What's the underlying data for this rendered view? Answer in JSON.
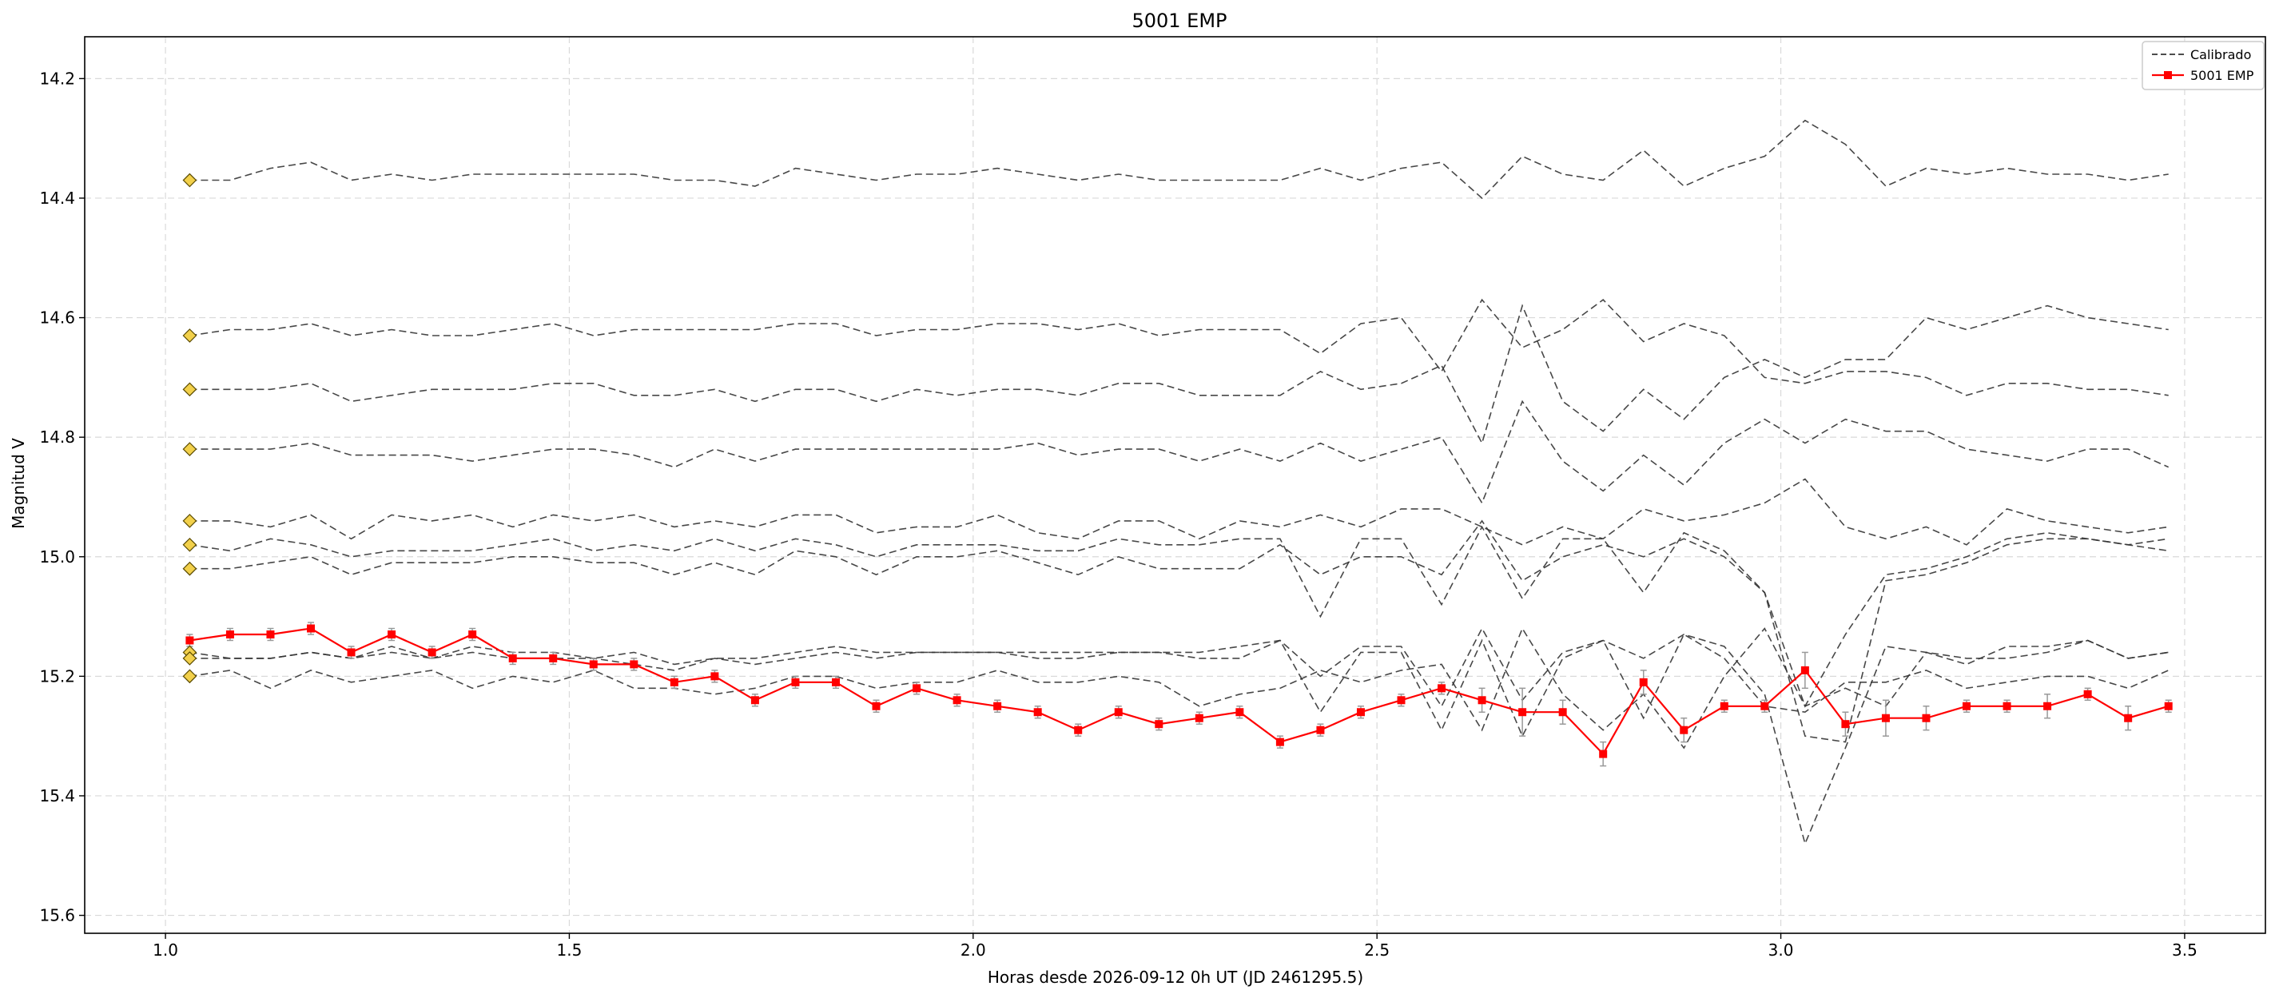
{
  "chart_data": {
    "type": "line",
    "title": "5001 EMP",
    "xlabel": "Horas desde 2026-09-12 0h UT (JD 2461295.5)",
    "ylabel": "Magnitud V",
    "xlim": [
      0.9,
      3.6
    ],
    "ylim": [
      15.63,
      14.13
    ],
    "y_inverted": true,
    "grid": true,
    "legend_position": "top-right",
    "x_ticks": [
      1.0,
      1.5,
      2.0,
      2.5,
      3.0,
      3.5
    ],
    "x_tick_labels": [
      "1.0",
      "1.5",
      "2.0",
      "2.5",
      "3.0",
      "3.5"
    ],
    "y_ticks": [
      14.2,
      14.4,
      14.6,
      14.8,
      15.0,
      15.2,
      15.4,
      15.6
    ],
    "y_tick_labels": [
      "14.2",
      "14.4",
      "14.6",
      "14.8",
      "15.0",
      "15.2",
      "15.4",
      "15.6"
    ],
    "legend": [
      {
        "label": "Calibrado",
        "style": "dashed",
        "color": "#333333"
      },
      {
        "label": "5001 EMP",
        "style": "solid-marker",
        "color": "#ff0000"
      }
    ],
    "x": [
      1.03,
      1.08,
      1.13,
      1.18,
      1.23,
      1.28,
      1.33,
      1.38,
      1.43,
      1.48,
      1.53,
      1.58,
      1.63,
      1.68,
      1.73,
      1.78,
      1.83,
      1.88,
      1.93,
      1.98,
      2.03,
      2.08,
      2.13,
      2.18,
      2.23,
      2.28,
      2.33,
      2.38,
      2.43,
      2.48,
      2.53,
      2.58,
      2.63,
      2.68,
      2.73,
      2.78,
      2.83,
      2.88,
      2.93,
      2.98,
      3.03,
      3.08,
      3.13,
      3.18,
      3.23,
      3.28,
      3.33,
      3.38,
      3.43,
      3.48
    ],
    "comparison_stars": [
      {
        "name": "Calibrado",
        "start_magnitude": 14.37,
        "values": [
          14.37,
          14.37,
          14.35,
          14.34,
          14.37,
          14.36,
          14.37,
          14.36,
          14.36,
          14.36,
          14.36,
          14.36,
          14.37,
          14.37,
          14.38,
          14.35,
          14.36,
          14.37,
          14.36,
          14.36,
          14.35,
          14.36,
          14.37,
          14.36,
          14.37,
          14.37,
          14.37,
          14.37,
          14.35,
          14.37,
          14.35,
          14.34,
          14.4,
          14.33,
          14.36,
          14.37,
          14.32,
          14.38,
          14.35,
          14.33,
          14.27,
          14.31,
          14.38,
          14.35,
          14.36,
          14.35,
          14.36,
          14.36,
          14.37,
          14.36
        ]
      },
      {
        "name": "Calibrado",
        "start_magnitude": 14.63,
        "values": [
          14.63,
          14.62,
          14.62,
          14.61,
          14.63,
          14.62,
          14.63,
          14.63,
          14.62,
          14.61,
          14.63,
          14.62,
          14.62,
          14.62,
          14.62,
          14.61,
          14.61,
          14.63,
          14.62,
          14.62,
          14.61,
          14.61,
          14.62,
          14.61,
          14.63,
          14.62,
          14.62,
          14.62,
          14.66,
          14.61,
          14.6,
          14.69,
          14.57,
          14.65,
          14.62,
          14.57,
          14.64,
          14.61,
          14.63,
          14.7,
          14.71,
          14.69,
          14.69,
          14.7,
          14.73,
          14.71,
          14.71,
          14.72,
          14.72,
          14.73
        ]
      },
      {
        "name": "Calibrado",
        "start_magnitude": 14.72,
        "values": [
          14.72,
          14.72,
          14.72,
          14.71,
          14.74,
          14.73,
          14.72,
          14.72,
          14.72,
          14.71,
          14.71,
          14.73,
          14.73,
          14.72,
          14.74,
          14.72,
          14.72,
          14.74,
          14.72,
          14.73,
          14.72,
          14.72,
          14.73,
          14.71,
          14.71,
          14.73,
          14.73,
          14.73,
          14.69,
          14.72,
          14.71,
          14.68,
          14.81,
          14.58,
          14.74,
          14.79,
          14.72,
          14.77,
          14.7,
          14.67,
          14.7,
          14.67,
          14.67,
          14.6,
          14.62,
          14.6,
          14.58,
          14.6,
          14.61,
          14.62
        ]
      },
      {
        "name": "Calibrado",
        "start_magnitude": 14.82,
        "values": [
          14.82,
          14.82,
          14.82,
          14.81,
          14.83,
          14.83,
          14.83,
          14.84,
          14.83,
          14.82,
          14.82,
          14.83,
          14.85,
          14.82,
          14.84,
          14.82,
          14.82,
          14.82,
          14.82,
          14.82,
          14.82,
          14.81,
          14.83,
          14.82,
          14.82,
          14.84,
          14.82,
          14.84,
          14.81,
          14.84,
          14.82,
          14.8,
          14.91,
          14.74,
          14.84,
          14.89,
          14.83,
          14.88,
          14.81,
          14.77,
          14.81,
          14.77,
          14.79,
          14.79,
          14.82,
          14.83,
          14.84,
          14.82,
          14.82,
          14.85
        ]
      },
      {
        "name": "Calibrado",
        "start_magnitude": 14.94,
        "values": [
          14.94,
          14.94,
          14.95,
          14.93,
          14.97,
          14.93,
          14.94,
          14.93,
          14.95,
          14.93,
          14.94,
          14.93,
          14.95,
          14.94,
          14.95,
          14.93,
          14.93,
          14.96,
          14.95,
          14.95,
          14.93,
          14.96,
          14.97,
          14.94,
          14.94,
          14.97,
          14.94,
          14.95,
          14.93,
          14.95,
          14.92,
          14.92,
          14.95,
          14.98,
          14.95,
          14.97,
          14.92,
          14.94,
          14.93,
          14.91,
          14.87,
          14.95,
          14.97,
          14.95,
          14.98,
          14.92,
          14.94,
          14.95,
          14.96,
          14.95
        ]
      },
      {
        "name": "Calibrado",
        "start_magnitude": 14.98,
        "values": [
          14.98,
          14.99,
          14.97,
          14.98,
          15.0,
          14.99,
          14.99,
          14.99,
          14.98,
          14.97,
          14.99,
          14.98,
          14.99,
          14.97,
          14.99,
          14.97,
          14.98,
          15.0,
          14.98,
          14.98,
          14.98,
          14.99,
          14.99,
          14.97,
          14.98,
          14.98,
          14.97,
          14.97,
          15.1,
          14.97,
          14.97,
          15.08,
          14.95,
          15.07,
          14.97,
          14.97,
          15.06,
          14.96,
          14.99,
          15.06,
          15.25,
          15.13,
          15.03,
          15.02,
          15.0,
          14.97,
          14.96,
          14.97,
          14.98,
          14.99
        ]
      },
      {
        "name": "Calibrado",
        "start_magnitude": 15.02,
        "values": [
          15.02,
          15.02,
          15.01,
          15.0,
          15.03,
          15.01,
          15.01,
          15.01,
          15.0,
          15.0,
          15.01,
          15.01,
          15.03,
          15.01,
          15.03,
          14.99,
          15.0,
          15.03,
          15.0,
          15.0,
          14.99,
          15.01,
          15.03,
          15.0,
          15.02,
          15.02,
          15.02,
          14.98,
          15.03,
          15.0,
          15.0,
          15.03,
          14.94,
          15.04,
          15.0,
          14.98,
          15.0,
          14.97,
          15.0,
          15.06,
          15.3,
          15.31,
          15.04,
          15.03,
          15.01,
          14.98,
          14.97,
          14.97,
          14.98,
          14.97
        ]
      },
      {
        "name": "Calibrado",
        "start_magnitude": 15.16,
        "values": [
          15.16,
          15.17,
          15.17,
          15.16,
          15.17,
          15.15,
          15.17,
          15.15,
          15.16,
          15.16,
          15.17,
          15.16,
          15.18,
          15.17,
          15.17,
          15.16,
          15.15,
          15.16,
          15.16,
          15.16,
          15.16,
          15.16,
          15.16,
          15.16,
          15.16,
          15.16,
          15.15,
          15.14,
          15.2,
          15.15,
          15.15,
          15.25,
          15.12,
          15.24,
          15.16,
          15.14,
          15.17,
          15.13,
          15.15,
          15.23,
          15.48,
          15.32,
          15.15,
          15.16,
          15.17,
          15.17,
          15.16,
          15.14,
          15.17,
          15.16
        ]
      },
      {
        "name": "Calibrado",
        "start_magnitude": 15.17,
        "values": [
          15.17,
          15.17,
          15.17,
          15.16,
          15.17,
          15.16,
          15.17,
          15.16,
          15.17,
          15.17,
          15.17,
          15.18,
          15.19,
          15.17,
          15.18,
          15.17,
          15.16,
          15.17,
          15.16,
          15.16,
          15.16,
          15.17,
          15.17,
          15.16,
          15.16,
          15.17,
          15.17,
          15.14,
          15.26,
          15.16,
          15.16,
          15.29,
          15.14,
          15.3,
          15.17,
          15.14,
          15.27,
          15.13,
          15.17,
          15.25,
          15.26,
          15.21,
          15.21,
          15.19,
          15.22,
          15.21,
          15.2,
          15.2,
          15.22,
          15.19
        ]
      },
      {
        "name": "Calibrado",
        "start_magnitude": 15.2,
        "values": [
          15.2,
          15.19,
          15.22,
          15.19,
          15.21,
          15.2,
          15.19,
          15.22,
          15.2,
          15.21,
          15.19,
          15.22,
          15.22,
          15.23,
          15.22,
          15.2,
          15.2,
          15.22,
          15.21,
          15.21,
          15.19,
          15.21,
          15.21,
          15.2,
          15.21,
          15.25,
          15.23,
          15.22,
          15.19,
          15.21,
          15.19,
          15.18,
          15.29,
          15.12,
          15.23,
          15.29,
          15.23,
          15.32,
          15.2,
          15.12,
          15.25,
          15.22,
          15.25,
          15.16,
          15.18,
          15.15,
          15.15,
          15.14,
          15.17,
          15.16
        ]
      }
    ],
    "comparison_marker_color": "#f2d04b",
    "target": {
      "name": "5001 EMP",
      "color": "#ff0000",
      "values": [
        15.14,
        15.13,
        15.13,
        15.12,
        15.16,
        15.13,
        15.16,
        15.13,
        15.17,
        15.17,
        15.18,
        15.18,
        15.21,
        15.2,
        15.24,
        15.21,
        15.21,
        15.25,
        15.22,
        15.24,
        15.25,
        15.26,
        15.29,
        15.26,
        15.28,
        15.27,
        15.26,
        15.31,
        15.29,
        15.26,
        15.24,
        15.22,
        15.24,
        15.26,
        15.26,
        15.33,
        15.21,
        15.29,
        15.25,
        15.25,
        15.19,
        15.28,
        15.27,
        15.27,
        15.25,
        15.25,
        15.25,
        15.23,
        15.27,
        15.25
      ],
      "errors": [
        0.01,
        0.01,
        0.01,
        0.01,
        0.01,
        0.01,
        0.01,
        0.01,
        0.01,
        0.01,
        0.01,
        0.01,
        0.01,
        0.01,
        0.01,
        0.01,
        0.01,
        0.01,
        0.01,
        0.01,
        0.01,
        0.01,
        0.01,
        0.01,
        0.01,
        0.01,
        0.01,
        0.01,
        0.01,
        0.01,
        0.01,
        0.01,
        0.02,
        0.04,
        0.02,
        0.02,
        0.02,
        0.02,
        0.01,
        0.01,
        0.03,
        0.02,
        0.03,
        0.02,
        0.01,
        0.01,
        0.02,
        0.01,
        0.02,
        0.01
      ]
    }
  }
}
